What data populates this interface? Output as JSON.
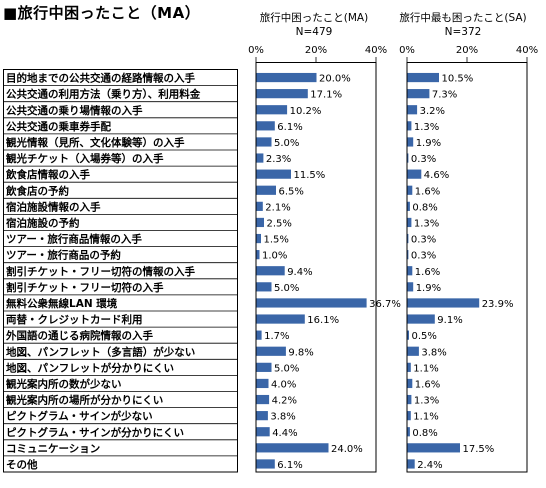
{
  "title": "■旅行中困ったこと（MA）",
  "chart_data": {
    "type": "bar",
    "orientation": "horizontal",
    "categories": [
      "目的地までの公共交通の経路情報の入手",
      "公共交通の利用方法（乗り方）、利用料金",
      "公共交通の乗り場情報の入手",
      "公共交通の乗車券手配",
      "観光情報（見所、文化体験等）の入手",
      "観光チケット（入場券等）の入手",
      "飲食店情報の入手",
      "飲食店の予約",
      "宿泊施設情報の入手",
      "宿泊施設の予約",
      "ツアー・旅行商品情報の入手",
      "ツアー・旅行商品の予約",
      "割引チケット・フリー切符の情報の入手",
      "割引チケット・フリー切符の入手",
      "無料公衆無線LAN 環境",
      "両替・クレジットカード利用",
      "外国語の通じる病院情報の入手",
      "地図、パンフレット（多言語）が少ない",
      "地図、パンフレットが分かりにくい",
      "観光案内所の数が少ない",
      "観光案内所の場所が分かりにくい",
      "ピクトグラム・サインが少ない",
      "ピクトグラム・サインが分かりにくい",
      "コミュニケーション",
      "その他"
    ],
    "series": [
      {
        "name": "旅行中困ったこと(MA)",
        "n_label": "N=479",
        "values": [
          20.0,
          17.1,
          10.2,
          6.1,
          5.0,
          2.3,
          11.5,
          6.5,
          2.1,
          2.5,
          1.5,
          1.0,
          9.4,
          5.0,
          36.7,
          16.1,
          1.7,
          9.8,
          5.0,
          4.0,
          4.2,
          3.8,
          4.4,
          24.0,
          6.1
        ],
        "value_labels": [
          "20.0%",
          "17.1%",
          "10.2%",
          "6.1%",
          "5.0%",
          "2.3%",
          "11.5%",
          "6.5%",
          "2.1%",
          "2.5%",
          "1.5%",
          "1.0%",
          "9.4%",
          "5.0%",
          "36.7%",
          "16.1%",
          "1.7%",
          "9.8%",
          "5.0%",
          "4.0%",
          "4.2%",
          "3.8%",
          "4.4%",
          "24.0%",
          "6.1%"
        ]
      },
      {
        "name": "旅行中最も困ったこと(SA)",
        "n_label": "N=372",
        "values": [
          10.5,
          7.3,
          3.2,
          1.3,
          1.9,
          0.3,
          4.6,
          1.6,
          0.8,
          1.3,
          0.3,
          0.3,
          1.6,
          1.9,
          23.9,
          9.1,
          0.5,
          3.8,
          1.1,
          1.6,
          1.3,
          1.1,
          0.8,
          17.5,
          2.4
        ],
        "value_labels": [
          "10.5%",
          "7.3%",
          "3.2%",
          "1.3%",
          "1.9%",
          "0.3%",
          "4.6%",
          "1.6%",
          "0.8%",
          "1.3%",
          "0.3%",
          "0.3%",
          "1.6%",
          "1.9%",
          "23.9%",
          "9.1%",
          "0.5%",
          "3.8%",
          "1.1%",
          "1.6%",
          "1.3%",
          "1.1%",
          "0.8%",
          "17.5%",
          "2.4%"
        ]
      }
    ],
    "xlim": [
      0,
      40
    ],
    "tick_labels": [
      "0%",
      "20%",
      "40%"
    ],
    "bar_color": "#3a66a8",
    "grid": false,
    "legend": "none"
  }
}
